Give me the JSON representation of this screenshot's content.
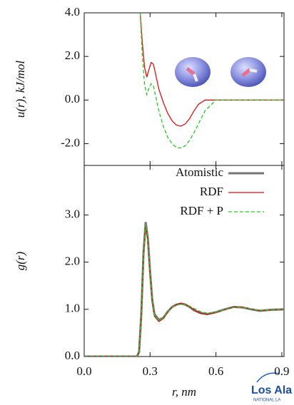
{
  "chart_data": [
    {
      "type": "line",
      "y_label": "u(r), kJ/mol",
      "xlim": [
        0,
        0.91
      ],
      "xticks": [
        0,
        0.3,
        0.6,
        0.9
      ],
      "ylim": [
        -3,
        4
      ],
      "yticks": [
        {
          "value": 4,
          "label": "4.0"
        },
        {
          "value": 2,
          "label": "2.0"
        },
        {
          "value": 0,
          "label": "0.0"
        },
        {
          "value": -2,
          "label": "-2.0"
        }
      ],
      "series": [
        {
          "name": "RDF",
          "color": "#dd1111",
          "dash": false,
          "x": [
            0.255,
            0.265,
            0.275,
            0.285,
            0.295,
            0.305,
            0.315,
            0.325,
            0.34,
            0.36,
            0.38,
            0.4,
            0.42,
            0.44,
            0.46,
            0.48,
            0.5,
            0.52,
            0.55,
            0.6,
            0.7,
            0.8,
            0.91
          ],
          "values": [
            4.0,
            2.6,
            1.5,
            1.05,
            1.4,
            1.72,
            1.65,
            1.2,
            0.5,
            -0.1,
            -0.6,
            -0.95,
            -1.15,
            -1.2,
            -1.1,
            -0.85,
            -0.5,
            -0.2,
            0,
            0,
            0,
            0,
            0
          ]
        },
        {
          "name": "RDF + P",
          "color": "#22cc22",
          "dash": true,
          "x": [
            0.255,
            0.265,
            0.275,
            0.285,
            0.295,
            0.305,
            0.315,
            0.325,
            0.34,
            0.36,
            0.38,
            0.4,
            0.42,
            0.44,
            0.46,
            0.48,
            0.5,
            0.52,
            0.55,
            0.6,
            0.7,
            0.8,
            0.91
          ],
          "values": [
            4.0,
            2.0,
            0.7,
            0.25,
            0.55,
            0.75,
            0.65,
            0.2,
            -0.5,
            -1.2,
            -1.7,
            -2.0,
            -2.18,
            -2.2,
            -2.1,
            -1.85,
            -1.5,
            -1.1,
            -0.5,
            0,
            0,
            0,
            0
          ]
        }
      ]
    },
    {
      "type": "line",
      "x_label": "r, nm",
      "y_label": "g(r)",
      "xlim": [
        0,
        0.91
      ],
      "xticks": [
        {
          "value": 0,
          "label": "0.0"
        },
        {
          "value": 0.3,
          "label": "0.3"
        },
        {
          "value": 0.6,
          "label": "0.6"
        },
        {
          "value": 0.9,
          "label": "0.9"
        }
      ],
      "ylim": [
        0,
        4.05
      ],
      "yticks": [
        {
          "value": 0,
          "label": "0.0"
        },
        {
          "value": 1,
          "label": "1.0"
        },
        {
          "value": 2,
          "label": "2.0"
        },
        {
          "value": 3,
          "label": "3.0"
        }
      ],
      "series": [
        {
          "name": "Atomistic",
          "color": "#777777",
          "dash": false,
          "width": 3,
          "x": [
            0,
            0.24,
            0.25,
            0.26,
            0.27,
            0.28,
            0.29,
            0.3,
            0.31,
            0.32,
            0.34,
            0.36,
            0.38,
            0.4,
            0.42,
            0.44,
            0.46,
            0.48,
            0.5,
            0.53,
            0.56,
            0.6,
            0.64,
            0.68,
            0.72,
            0.76,
            0.8,
            0.85,
            0.91
          ],
          "values": [
            0,
            0,
            0.1,
            0.9,
            2.2,
            2.85,
            2.5,
            1.8,
            1.2,
            0.9,
            0.78,
            0.82,
            0.95,
            1.05,
            1.1,
            1.12,
            1.1,
            1.05,
            0.98,
            0.92,
            0.9,
            0.94,
            1.0,
            1.05,
            1.04,
            1.0,
            0.97,
            0.99,
            1.0
          ]
        },
        {
          "name": "RDF",
          "color": "#dd1111",
          "dash": false,
          "width": 1.3,
          "x": [
            0,
            0.24,
            0.25,
            0.26,
            0.27,
            0.28,
            0.29,
            0.3,
            0.31,
            0.32,
            0.34,
            0.36,
            0.38,
            0.4,
            0.42,
            0.44,
            0.46,
            0.48,
            0.5,
            0.53,
            0.56,
            0.6,
            0.64,
            0.68,
            0.72,
            0.76,
            0.8,
            0.85,
            0.91
          ],
          "values": [
            0,
            0,
            0.08,
            0.8,
            2.1,
            2.75,
            2.45,
            1.75,
            1.15,
            0.85,
            0.74,
            0.8,
            0.93,
            1.04,
            1.1,
            1.13,
            1.11,
            1.06,
            0.99,
            0.92,
            0.89,
            0.93,
            0.99,
            1.05,
            1.05,
            1.01,
            0.97,
            0.99,
            1.0
          ]
        },
        {
          "name": "RDF + P",
          "color": "#22cc22",
          "dash": true,
          "width": 1.3,
          "x": [
            0,
            0.24,
            0.25,
            0.26,
            0.27,
            0.28,
            0.29,
            0.3,
            0.31,
            0.32,
            0.34,
            0.36,
            0.38,
            0.4,
            0.42,
            0.44,
            0.46,
            0.48,
            0.5,
            0.53,
            0.56,
            0.6,
            0.64,
            0.68,
            0.72,
            0.76,
            0.8,
            0.85,
            0.91
          ],
          "values": [
            0,
            0,
            0.1,
            0.85,
            2.15,
            2.8,
            2.5,
            1.8,
            1.2,
            0.88,
            0.76,
            0.82,
            0.94,
            1.04,
            1.09,
            1.11,
            1.1,
            1.07,
            1.02,
            0.95,
            0.92,
            0.94,
            0.99,
            1.04,
            1.04,
            1.01,
            0.98,
            0.99,
            1.0
          ]
        }
      ]
    }
  ],
  "logo": {
    "name": "Los Ala",
    "sub": "NATIONAL LA"
  }
}
